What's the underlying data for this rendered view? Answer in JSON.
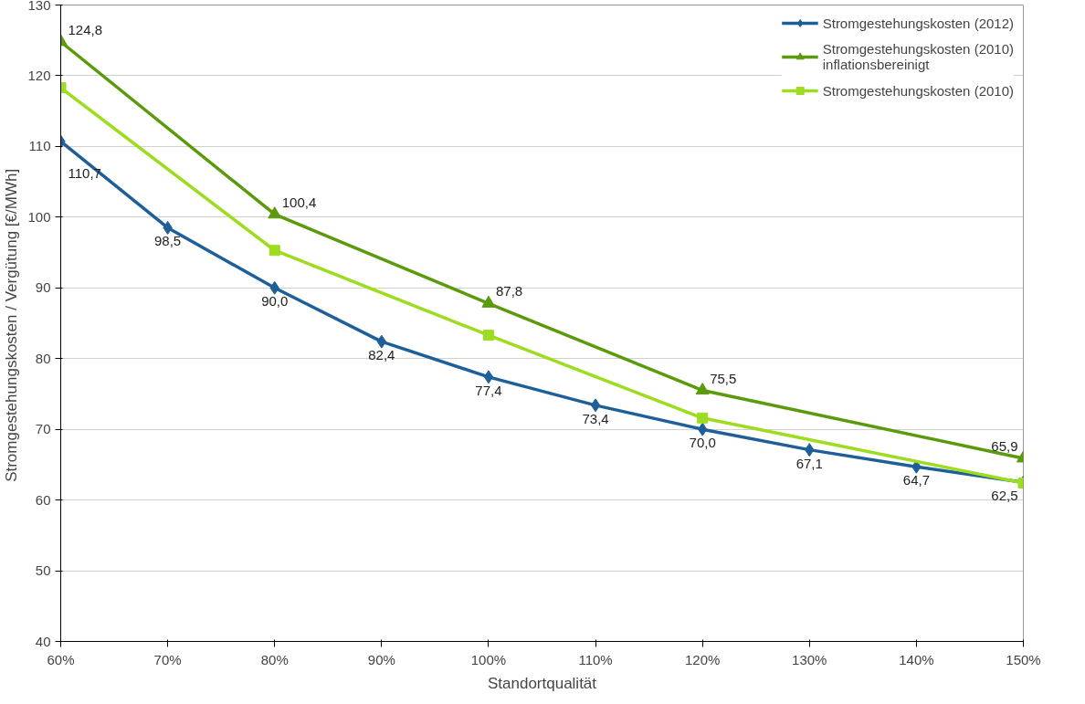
{
  "chart_data": {
    "type": "line",
    "xlabel": "Standortqualität",
    "ylabel": "Stromgestehungskosten  / Vergütung [€/MWh]",
    "xlim": [
      60,
      150
    ],
    "xticks": [
      {
        "value": 60,
        "label": "60%"
      },
      {
        "value": 70,
        "label": "70%"
      },
      {
        "value": 80,
        "label": "80%"
      },
      {
        "value": 90,
        "label": "90%"
      },
      {
        "value": 100,
        "label": "100%"
      },
      {
        "value": 110,
        "label": "110%"
      },
      {
        "value": 120,
        "label": "120%"
      },
      {
        "value": 130,
        "label": "130%"
      },
      {
        "value": 140,
        "label": "140%"
      },
      {
        "value": 150,
        "label": "150%"
      }
    ],
    "ylim": [
      40,
      130
    ],
    "yticks": [
      40,
      50,
      60,
      70,
      80,
      90,
      100,
      110,
      120,
      130
    ],
    "grid": "y",
    "legend": "top right",
    "line_style": "solid",
    "series": [
      {
        "name": "Stromgestehungskosten (2012)",
        "color": "#1f5f99",
        "marker": "diamond",
        "x": [
          60,
          70,
          80,
          90,
          100,
          110,
          120,
          130,
          140,
          150
        ],
        "values": [
          110.7,
          98.5,
          90.0,
          82.4,
          77.4,
          73.4,
          70.0,
          67.1,
          64.7,
          62.5
        ],
        "value_labels": [
          "110,7",
          "98,5",
          "90,0",
          "82,4",
          "77,4",
          "73,4",
          "70,0",
          "67,1",
          "64,7",
          "62,5"
        ]
      },
      {
        "name": "Stromgestehungskosten (2010)\ninflationsbereinigt",
        "color": "#5b9a0c",
        "marker": "triangle",
        "x": [
          60,
          80,
          100,
          120,
          150
        ],
        "values": [
          124.8,
          100.4,
          87.8,
          75.5,
          65.9
        ],
        "value_labels": [
          "124,8",
          "100,4",
          "87,8",
          "75,5",
          "65,9"
        ]
      },
      {
        "name": "Stromgestehungskosten (2010)",
        "color": "#9ddc1e",
        "marker": "square",
        "x": [
          60,
          80,
          100,
          120,
          150
        ],
        "values": [
          118.3,
          95.3,
          83.3,
          71.6,
          62.4
        ]
      }
    ]
  }
}
